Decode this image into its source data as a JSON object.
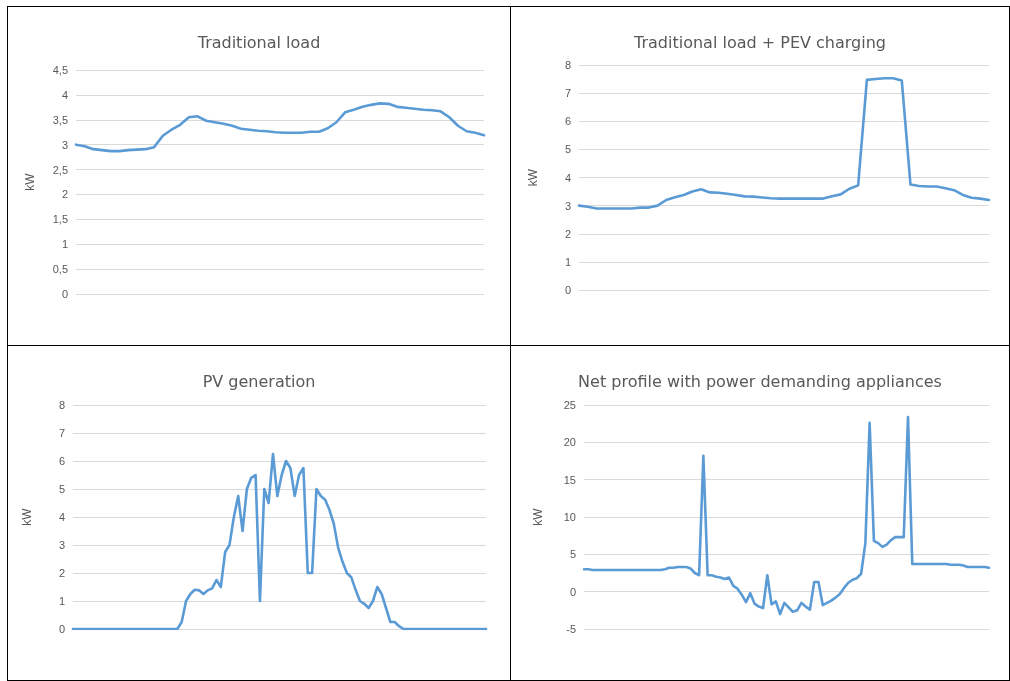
{
  "chart_data": [
    {
      "type": "line",
      "title": "Traditional load",
      "ylabel": "kW",
      "color": "#5b9bd5",
      "grid": "y",
      "tick_labels": "y",
      "categories": [
        null,
        null,
        null,
        null,
        null,
        null,
        null,
        null,
        null,
        null,
        null,
        null,
        null,
        null,
        null,
        null,
        null,
        null,
        null,
        null,
        null,
        null,
        null,
        null,
        null,
        null,
        null,
        null,
        null,
        null,
        null,
        null,
        null,
        null,
        null,
        null,
        null,
        null,
        null,
        null,
        null,
        null,
        null,
        null,
        null,
        null,
        null,
        null
      ],
      "values": [
        3.0,
        2.97,
        2.91,
        2.89,
        2.87,
        2.87,
        2.89,
        2.9,
        2.91,
        2.95,
        3.18,
        3.3,
        3.4,
        3.55,
        3.57,
        3.48,
        3.45,
        3.42,
        3.38,
        3.32,
        3.3,
        3.28,
        3.27,
        3.25,
        3.24,
        3.24,
        3.24,
        3.26,
        3.26,
        3.33,
        3.45,
        3.65,
        3.7,
        3.76,
        3.8,
        3.83,
        3.82,
        3.76,
        3.74,
        3.72,
        3.7,
        3.69,
        3.67,
        3.55,
        3.38,
        3.27,
        3.24,
        3.19
      ],
      "ylim": [
        0,
        4.5
      ],
      "yticks": [
        0,
        {
          "value": 0.5,
          "label": "0,5"
        },
        1,
        {
          "value": 1.5,
          "label": "1,5"
        },
        2,
        {
          "value": 2.5,
          "label": "2,5"
        },
        3,
        {
          "value": 3.5,
          "label": "3,5"
        },
        4,
        {
          "value": 4.5,
          "label": "4,5"
        }
      ]
    },
    {
      "type": "line",
      "title": "Traditional load + PEV charging",
      "ylabel": "kW",
      "color": "#5b9bd5",
      "grid": "y",
      "tick_labels": "y",
      "categories": [
        null,
        null,
        null,
        null,
        null,
        null,
        null,
        null,
        null,
        null,
        null,
        null,
        null,
        null,
        null,
        null,
        null,
        null,
        null,
        null,
        null,
        null,
        null,
        null,
        null,
        null,
        null,
        null,
        null,
        null,
        null,
        null,
        null,
        null,
        null,
        null,
        null,
        null,
        null,
        null,
        null,
        null,
        null,
        null,
        null,
        null,
        null,
        null
      ],
      "values": [
        3.0,
        2.96,
        2.9,
        2.9,
        2.9,
        2.9,
        2.9,
        2.93,
        2.93,
        3.0,
        3.2,
        3.3,
        3.38,
        3.5,
        3.58,
        3.47,
        3.46,
        3.42,
        3.38,
        3.33,
        3.32,
        3.29,
        3.26,
        3.25,
        3.25,
        3.25,
        3.25,
        3.25,
        3.25,
        3.33,
        3.4,
        3.6,
        3.72,
        7.47,
        7.5,
        7.53,
        7.53,
        7.45,
        3.75,
        3.7,
        3.68,
        3.68,
        3.62,
        3.55,
        3.38,
        3.28,
        3.25,
        3.2
      ],
      "ylim": [
        0,
        8
      ],
      "yticks": [
        0,
        1,
        2,
        3,
        4,
        5,
        6,
        7,
        8
      ]
    },
    {
      "type": "line",
      "title": "PV generation",
      "ylabel": "kW",
      "color": "#5b9bd5",
      "grid": "y",
      "tick_labels": "y",
      "categories": [
        null,
        null,
        null,
        null,
        null,
        null,
        null,
        null,
        null,
        null,
        null,
        null,
        null,
        null,
        null,
        null,
        null,
        null,
        null,
        null,
        null,
        null,
        null,
        null,
        null,
        null,
        null,
        null,
        null,
        null,
        null,
        null,
        null,
        null,
        null,
        null,
        null,
        null,
        null,
        null,
        null,
        null,
        null,
        null,
        null,
        null,
        null,
        null,
        null,
        null,
        null,
        null,
        null,
        null,
        null,
        null,
        null,
        null,
        null,
        null,
        null,
        null,
        null,
        null,
        null,
        null,
        null,
        null,
        null,
        null,
        null,
        null,
        null,
        null,
        null,
        null,
        null,
        null,
        null,
        null,
        null,
        null,
        null,
        null,
        null,
        null,
        null,
        null,
        null,
        null,
        null,
        null,
        null,
        null,
        null,
        null
      ],
      "values": [
        0,
        0,
        0,
        0,
        0,
        0,
        0,
        0,
        0,
        0,
        0,
        0,
        0,
        0,
        0,
        0,
        0,
        0,
        0,
        0,
        0,
        0,
        0,
        0,
        0,
        0.25,
        1.0,
        1.25,
        1.4,
        1.38,
        1.25,
        1.38,
        1.45,
        1.75,
        1.5,
        2.75,
        3.0,
        4.0,
        4.75,
        3.5,
        5.0,
        5.4,
        5.5,
        1.0,
        5.0,
        4.5,
        6.25,
        4.75,
        5.5,
        6.0,
        5.75,
        4.75,
        5.5,
        5.75,
        2.0,
        2.0,
        5.0,
        4.75,
        4.62,
        4.25,
        3.75,
        2.9,
        2.4,
        2.0,
        1.85,
        1.4,
        1.0,
        0.9,
        0.75,
        1.0,
        1.5,
        1.25,
        0.75,
        0.25,
        0.25,
        0.1,
        0,
        0,
        0,
        0,
        0,
        0,
        0,
        0,
        0,
        0,
        0,
        0,
        0,
        0,
        0,
        0,
        0,
        0,
        0,
        0
      ],
      "ylim": [
        0,
        8
      ],
      "yticks": [
        0,
        1,
        2,
        3,
        4,
        5,
        6,
        7,
        8
      ]
    },
    {
      "type": "line",
      "title": "Net profile with power demanding appliances",
      "ylabel": "kW",
      "color": "#5b9bd5",
      "grid": "y",
      "tick_labels": "y",
      "categories": [
        null,
        null,
        null,
        null,
        null,
        null,
        null,
        null,
        null,
        null,
        null,
        null,
        null,
        null,
        null,
        null,
        null,
        null,
        null,
        null,
        null,
        null,
        null,
        null,
        null,
        null,
        null,
        null,
        null,
        null,
        null,
        null,
        null,
        null,
        null,
        null,
        null,
        null,
        null,
        null,
        null,
        null,
        null,
        null,
        null,
        null,
        null,
        null,
        null,
        null,
        null,
        null,
        null,
        null,
        null,
        null,
        null,
        null,
        null,
        null,
        null,
        null,
        null,
        null,
        null,
        null,
        null,
        null,
        null,
        null,
        null,
        null,
        null,
        null,
        null,
        null,
        null,
        null,
        null,
        null,
        null,
        null,
        null,
        null,
        null,
        null,
        null,
        null,
        null,
        null,
        null,
        null,
        null,
        null,
        null,
        null
      ],
      "values": [
        3.0,
        3.0,
        2.9,
        2.9,
        2.9,
        2.9,
        2.9,
        2.9,
        2.9,
        2.9,
        2.9,
        2.9,
        2.9,
        2.9,
        2.9,
        2.9,
        2.9,
        2.9,
        2.9,
        3.0,
        3.2,
        3.2,
        3.3,
        3.3,
        3.3,
        3.1,
        2.5,
        2.2,
        18.2,
        2.2,
        2.2,
        2.0,
        1.9,
        1.7,
        1.9,
        0.8,
        0.4,
        -0.4,
        -1.4,
        -0.2,
        -1.6,
        -2.0,
        -2.2,
        2.2,
        -1.7,
        -1.3,
        -3.0,
        -1.5,
        -2.1,
        -2.7,
        -2.5,
        -1.5,
        -2.0,
        -2.4,
        1.3,
        1.3,
        -1.8,
        -1.5,
        -1.2,
        -0.8,
        -0.3,
        0.5,
        1.2,
        1.6,
        1.8,
        2.4,
        6.5,
        22.6,
        6.8,
        6.5,
        6.0,
        6.3,
        6.9,
        7.3,
        7.3,
        7.3,
        23.4,
        3.7,
        3.7,
        3.7,
        3.7,
        3.7,
        3.7,
        3.7,
        3.7,
        3.7,
        3.6,
        3.6,
        3.6,
        3.5,
        3.3,
        3.3,
        3.3,
        3.3,
        3.3,
        3.2
      ],
      "ylim": [
        -5,
        25
      ],
      "yticks": [
        -5,
        0,
        5,
        10,
        15,
        20,
        25
      ]
    }
  ]
}
